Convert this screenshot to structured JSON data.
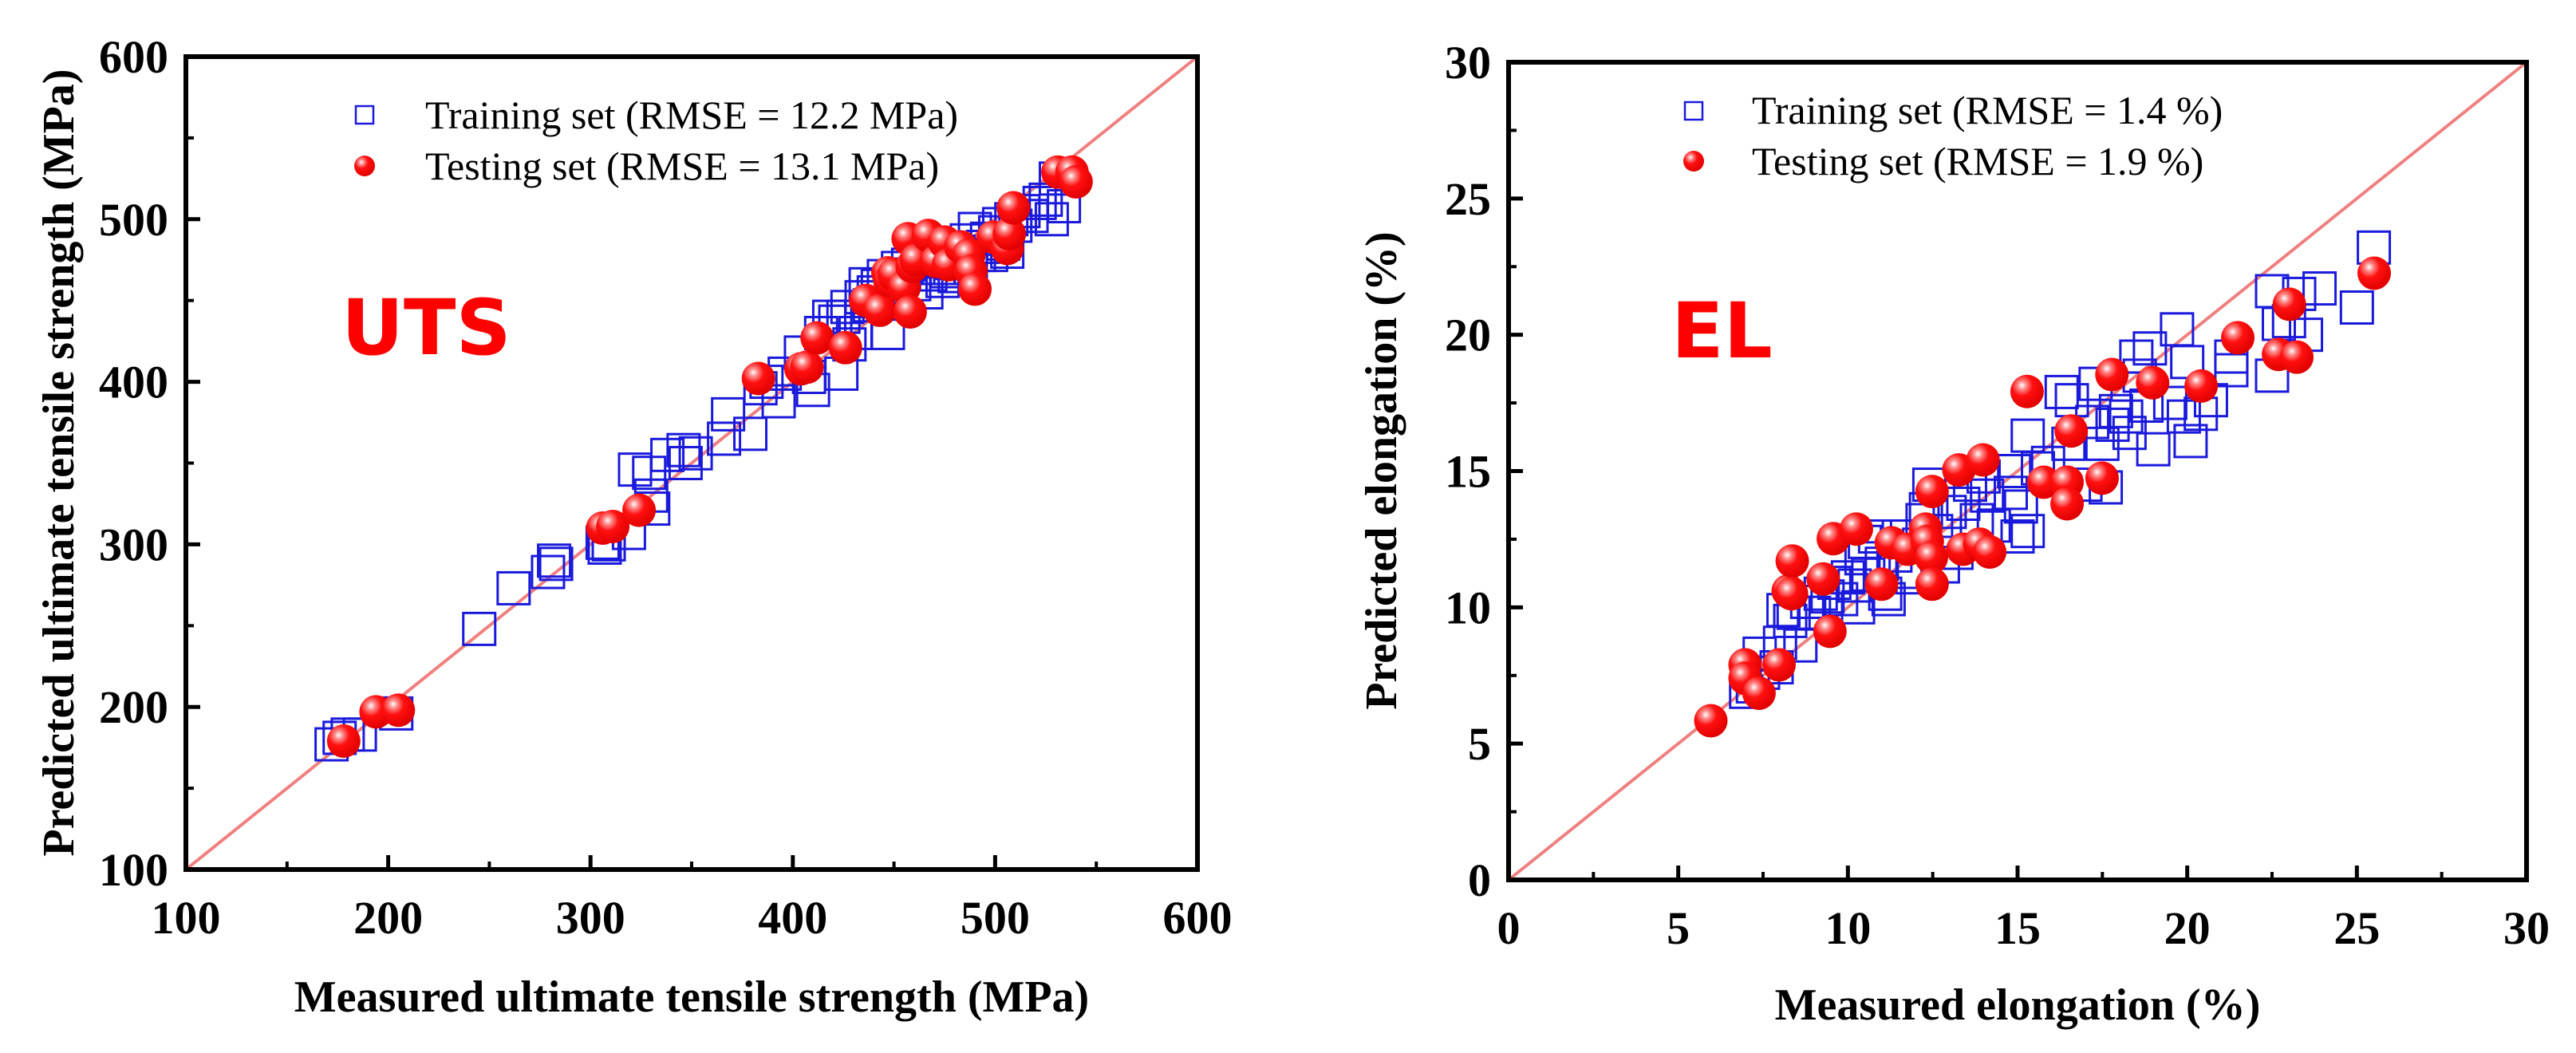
{
  "chart_data": [
    {
      "type": "scatter",
      "panel_label": "UTS",
      "title": "",
      "xlabel": "Measured ultimate tensile strength (MPa)",
      "ylabel": "Predicted  ultimate tensile strength (MPa)",
      "xlim": [
        100,
        600
      ],
      "ylim": [
        100,
        600
      ],
      "xticks": [
        "100",
        "200",
        "300",
        "400",
        "500",
        "600"
      ],
      "yticks": [
        "100",
        "200",
        "300",
        "400",
        "500",
        "600"
      ],
      "grid": false,
      "legend_position": "top-center",
      "reference_line": {
        "name": "y = x",
        "color": "#f08080"
      },
      "series": [
        {
          "name": "Training set (RMSE = 12.2 MPa)",
          "marker": "open-square",
          "color": "#1a1adc",
          "points": [
            [
              172,
              177
            ],
            [
              176,
              181
            ],
            [
              180,
              183
            ],
            [
              186,
              183
            ],
            [
              204,
              196
            ],
            [
              245,
              248
            ],
            [
              262,
              273
            ],
            [
              279,
              283
            ],
            [
              282,
              290
            ],
            [
              283,
              288
            ],
            [
              306,
              301
            ],
            [
              307,
              298
            ],
            [
              309,
              300
            ],
            [
              319,
              307
            ],
            [
              322,
              346
            ],
            [
              329,
              344
            ],
            [
              330,
              330
            ],
            [
              331,
              322
            ],
            [
              338,
              355
            ],
            [
              346,
              358
            ],
            [
              347,
              350
            ],
            [
              352,
              356
            ],
            [
              366,
              365
            ],
            [
              368,
              380
            ],
            [
              379,
              368
            ],
            [
              384,
              396
            ],
            [
              387,
              400
            ],
            [
              393,
              388
            ],
            [
              396,
              405
            ],
            [
              404,
              418
            ],
            [
              408,
              403
            ],
            [
              410,
              395
            ],
            [
              414,
              430
            ],
            [
              418,
              440
            ],
            [
              421,
              437
            ],
            [
              424,
              405
            ],
            [
              425,
              440
            ],
            [
              427,
              446
            ],
            [
              428,
              423
            ],
            [
              431,
              430
            ],
            [
              434,
              452
            ],
            [
              436,
              460
            ],
            [
              438,
              447
            ],
            [
              440,
              455
            ],
            [
              442,
              459
            ],
            [
              445,
              465
            ],
            [
              447,
              430
            ],
            [
              448,
              448
            ],
            [
              450,
              458
            ],
            [
              452,
              470
            ],
            [
              455,
              466
            ],
            [
              457,
              472
            ],
            [
              460,
              460
            ],
            [
              462,
              470
            ],
            [
              464,
              474
            ],
            [
              466,
              455
            ],
            [
              468,
              466
            ],
            [
              470,
              478
            ],
            [
              472,
              470
            ],
            [
              474,
              462
            ],
            [
              476,
              468
            ],
            [
              478,
              473
            ],
            [
              480,
              465
            ],
            [
              482,
              480
            ],
            [
              484,
              476
            ],
            [
              486,
              487
            ],
            [
              488,
              470
            ],
            [
              490,
              494
            ],
            [
              492,
              478
            ],
            [
              494,
              483
            ],
            [
              496,
              488
            ],
            [
              498,
              478
            ],
            [
              500,
              492
            ],
            [
              502,
              497
            ],
            [
              504,
              485
            ],
            [
              506,
              480
            ],
            [
              508,
              500
            ],
            [
              510,
              496
            ],
            [
              514,
              505
            ],
            [
              518,
              502
            ],
            [
              522,
              510
            ],
            [
              525,
              512
            ],
            [
              528,
              500
            ],
            [
              530,
              525
            ],
            [
              534,
              508
            ]
          ]
        },
        {
          "name": "Testing  set  (RMSE = 13.1 MPa)",
          "marker": "filled-circle",
          "color": "#ff0000",
          "points": [
            [
              178,
              179
            ],
            [
              194,
              197
            ],
            [
              205,
              198
            ],
            [
              306,
              310
            ],
            [
              311,
              311
            ],
            [
              324,
              321
            ],
            [
              383,
              402
            ],
            [
              404,
              408
            ],
            [
              407,
              409
            ],
            [
              412,
              427
            ],
            [
              426,
              421
            ],
            [
              436,
              450
            ],
            [
              443,
              444
            ],
            [
              447,
              467
            ],
            [
              448,
              462
            ],
            [
              450,
              466
            ],
            [
              455,
              458
            ],
            [
              457,
              488
            ],
            [
              458,
              443
            ],
            [
              459,
              471
            ],
            [
              461,
              475
            ],
            [
              467,
              490
            ],
            [
              471,
              474
            ],
            [
              475,
              486
            ],
            [
              477,
              472
            ],
            [
              483,
              483
            ],
            [
              487,
              478
            ],
            [
              488,
              468
            ],
            [
              490,
              457
            ],
            [
              499,
              489
            ],
            [
              506,
              482
            ],
            [
              507,
              491
            ],
            [
              509,
              507
            ],
            [
              531,
              529
            ],
            [
              538,
              529
            ],
            [
              540,
              523
            ]
          ]
        }
      ]
    },
    {
      "type": "scatter",
      "panel_label": "EL",
      "title": "",
      "xlabel": "Measured elongation (%)",
      "ylabel": "Predicted elongation (%)",
      "xlim": [
        0,
        30
      ],
      "ylim": [
        0,
        30
      ],
      "xticks": [
        "0",
        "5",
        "10",
        "15",
        "20",
        "25",
        "30"
      ],
      "yticks": [
        "0",
        "5",
        "10",
        "15",
        "20",
        "25",
        "30"
      ],
      "grid": false,
      "legend_position": "top-center",
      "reference_line": {
        "name": "y = x",
        "color": "#f08080"
      },
      "series": [
        {
          "name": "Training set (RMSE = 1.4 %)",
          "marker": "open-square",
          "color": "#1a1adc",
          "points": [
            [
              7.0,
              6.9
            ],
            [
              7.2,
              7.1
            ],
            [
              7.4,
              8.3
            ],
            [
              7.5,
              7.6
            ],
            [
              7.9,
              7.8
            ],
            [
              8.0,
              8.7
            ],
            [
              8.1,
              9.9
            ],
            [
              8.3,
              9.5
            ],
            [
              8.4,
              9.8
            ],
            [
              8.6,
              8.6
            ],
            [
              8.8,
              10.2
            ],
            [
              9.0,
              9.8
            ],
            [
              9.2,
              10.5
            ],
            [
              9.4,
              10.4
            ],
            [
              9.6,
              10.9
            ],
            [
              9.8,
              10.3
            ],
            [
              10.0,
              11.1
            ],
            [
              10.2,
              10.8
            ],
            [
              10.3,
              10.0
            ],
            [
              10.4,
              11.8
            ],
            [
              10.5,
              12.4
            ],
            [
              10.6,
              11.2
            ],
            [
              10.8,
              12.6
            ],
            [
              11.0,
              11.6
            ],
            [
              11.1,
              10.5
            ],
            [
              11.2,
              10.3
            ],
            [
              11.4,
              11.9
            ],
            [
              11.5,
              12.6
            ],
            [
              11.7,
              11.3
            ],
            [
              11.9,
              11.1
            ],
            [
              12.1,
              12.3
            ],
            [
              12.2,
              13.2
            ],
            [
              12.3,
              13.6
            ],
            [
              12.4,
              14.5
            ],
            [
              12.6,
              12.8
            ],
            [
              12.8,
              11.5
            ],
            [
              13.0,
              13.5
            ],
            [
              13.2,
              12.0
            ],
            [
              13.4,
              13.8
            ],
            [
              13.6,
              14.5
            ],
            [
              13.8,
              13.2
            ],
            [
              14.0,
              14.8
            ],
            [
              14.1,
              14.1
            ],
            [
              14.3,
              13.0
            ],
            [
              14.8,
              14.2
            ],
            [
              14.9,
              15.0
            ],
            [
              15.0,
              12.6
            ],
            [
              15.1,
              13.7
            ],
            [
              15.3,
              12.8
            ],
            [
              15.3,
              16.3
            ],
            [
              15.6,
              15.1
            ],
            [
              15.9,
              15.3
            ],
            [
              16.3,
              17.9
            ],
            [
              16.5,
              16.0
            ],
            [
              16.6,
              17.6
            ],
            [
              17.0,
              14.5
            ],
            [
              17.2,
              16.8
            ],
            [
              17.3,
              18.2
            ],
            [
              17.5,
              16.0
            ],
            [
              17.6,
              14.4
            ],
            [
              17.8,
              16.7
            ],
            [
              17.9,
              17.2
            ],
            [
              18.2,
              17.0
            ],
            [
              18.3,
              16.4
            ],
            [
              18.5,
              19.2
            ],
            [
              18.6,
              18.5
            ],
            [
              18.8,
              17.4
            ],
            [
              18.9,
              19.5
            ],
            [
              19.0,
              15.8
            ],
            [
              19.5,
              17.5
            ],
            [
              19.7,
              20.2
            ],
            [
              19.9,
              17.0
            ],
            [
              20.0,
              19.0
            ],
            [
              20.1,
              16.1
            ],
            [
              20.4,
              17.1
            ],
            [
              20.7,
              17.6
            ],
            [
              21.3,
              18.7
            ],
            [
              21.3,
              19.2
            ],
            [
              22.5,
              21.6
            ],
            [
              22.5,
              18.5
            ],
            [
              22.7,
              20.4
            ],
            [
              23.0,
              20.5
            ],
            [
              23.3,
              21.5
            ],
            [
              23.5,
              20.0
            ],
            [
              23.9,
              21.7
            ],
            [
              25.0,
              21.0
            ],
            [
              25.5,
              23.2
            ]
          ]
        },
        {
          "name": "Testing  set  (RMSE = 1.9 %)",
          "marker": "filled-circle",
          "color": "#ff0000",
          "points": [
            [
              5.96,
              5.84
            ],
            [
              6.97,
              7.89
            ],
            [
              6.97,
              7.4
            ],
            [
              7.38,
              6.85
            ],
            [
              7.97,
              7.89
            ],
            [
              8.24,
              10.6
            ],
            [
              8.36,
              11.7
            ],
            [
              8.34,
              10.5
            ],
            [
              9.27,
              11.04
            ],
            [
              9.47,
              9.12
            ],
            [
              9.57,
              12.52
            ],
            [
              10.25,
              12.87
            ],
            [
              10.99,
              10.85
            ],
            [
              11.28,
              12.37
            ],
            [
              11.77,
              12.13
            ],
            [
              12.29,
              12.87
            ],
            [
              12.34,
              12.42
            ],
            [
              12.46,
              11.83
            ],
            [
              12.48,
              14.25
            ],
            [
              12.48,
              10.85
            ],
            [
              13.27,
              15.04
            ],
            [
              13.39,
              12.13
            ],
            [
              13.88,
              12.32
            ],
            [
              13.98,
              15.41
            ],
            [
              14.18,
              12.03
            ],
            [
              15.28,
              17.92
            ],
            [
              15.77,
              14.59
            ],
            [
              16.46,
              14.59
            ],
            [
              16.46,
              13.8
            ],
            [
              16.58,
              16.47
            ],
            [
              17.49,
              14.74
            ],
            [
              17.78,
              18.54
            ],
            [
              18.98,
              18.24
            ],
            [
              20.41,
              18.12
            ],
            [
              21.49,
              19.89
            ],
            [
              22.69,
              19.28
            ],
            [
              23.01,
              21.12
            ],
            [
              23.23,
              19.18
            ],
            [
              25.51,
              22.26
            ]
          ]
        }
      ]
    }
  ]
}
